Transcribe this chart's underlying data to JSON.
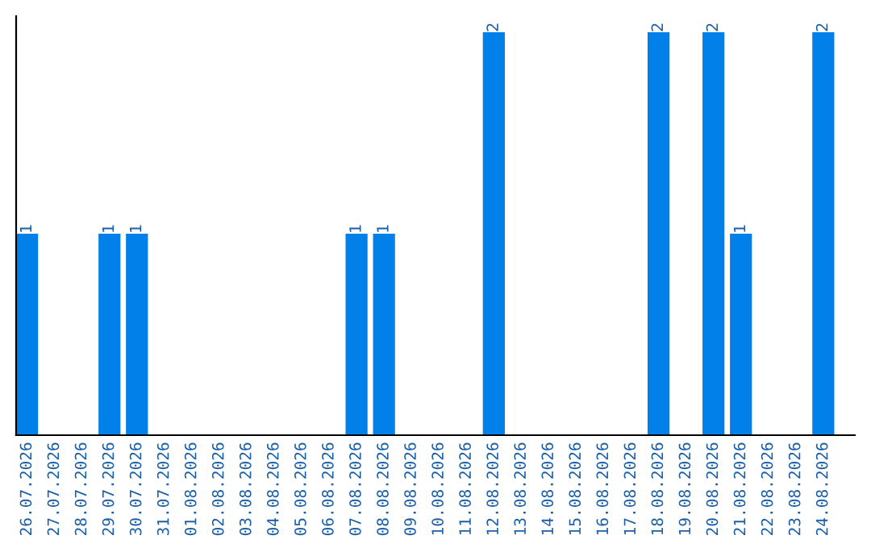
{
  "chart_data": {
    "type": "bar",
    "categories": [
      "26.07.2026",
      "27.07.2026",
      "28.07.2026",
      "29.07.2026",
      "30.07.2026",
      "31.07.2026",
      "01.08.2026",
      "02.08.2026",
      "03.08.2026",
      "04.08.2026",
      "05.08.2026",
      "06.08.2026",
      "07.08.2026",
      "08.08.2026",
      "09.08.2026",
      "10.08.2026",
      "11.08.2026",
      "12.08.2026",
      "13.08.2026",
      "14.08.2026",
      "15.08.2026",
      "16.08.2026",
      "17.08.2026",
      "18.08.2026",
      "19.08.2026",
      "20.08.2026",
      "21.08.2026",
      "22.08.2026",
      "23.08.2026",
      "24.08.2026"
    ],
    "values": [
      1,
      0,
      0,
      1,
      1,
      0,
      0,
      0,
      0,
      0,
      0,
      0,
      1,
      1,
      0,
      0,
      0,
      2,
      0,
      0,
      0,
      0,
      0,
      2,
      0,
      2,
      1,
      0,
      0,
      2
    ],
    "value_labels": [
      "1",
      null,
      null,
      "1",
      "1",
      null,
      null,
      null,
      null,
      null,
      null,
      null,
      "1",
      "1",
      null,
      null,
      null,
      "2",
      null,
      null,
      null,
      null,
      null,
      "2",
      null,
      "2",
      "1",
      null,
      null,
      "2"
    ],
    "color": "#0080e8",
    "tick_labels": "x",
    "grid": false,
    "legend": false
  }
}
